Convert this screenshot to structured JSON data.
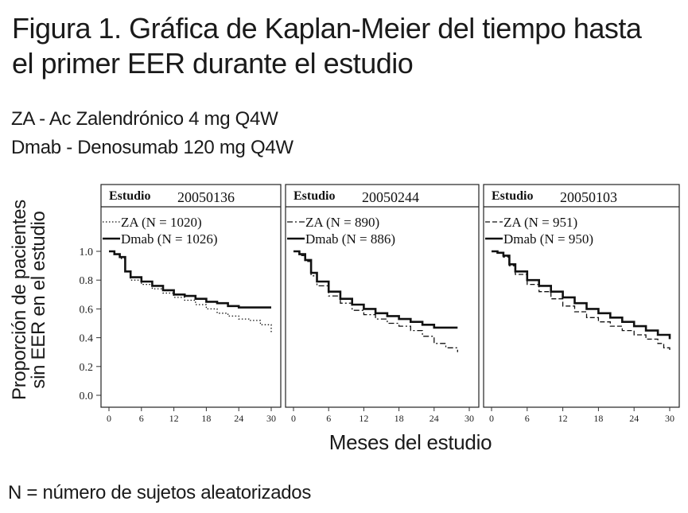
{
  "header": {
    "title_line1": "Figura 1. Gráfica de Kaplan-Meier del tiempo hasta",
    "title_line2": "el primer EER durante el estudio",
    "legend_line1": "ZA - Ac Zalendrónico 4 mg Q4W",
    "legend_line2": "Dmab - Denosumab 120 mg Q4W"
  },
  "footnote": "N = número de sujetos aleatorizados",
  "chart_data": {
    "type": "line",
    "subtype": "kaplan-meier step",
    "ylabel_line1": "Proporción de pacientes",
    "ylabel_line2": "sin EER en el estudio",
    "xlabel": "Meses del estudio",
    "xlim": [
      0,
      30
    ],
    "ylim": [
      0,
      1.0
    ],
    "x_ticks": [
      "0",
      "6",
      "12",
      "18",
      "24",
      "30"
    ],
    "y_ticks": [
      "0.0",
      "0.2",
      "0.4",
      "0.6",
      "0.8",
      "1.0"
    ],
    "grid": false,
    "legend_position": "top-left",
    "panels": [
      {
        "strip_label": "Estudio",
        "strip_number": "20050136",
        "series": [
          {
            "name": "ZA (N = 1020)",
            "style": "dotted",
            "x": [
              0,
              1,
              2,
              3,
              4,
              6,
              8,
              10,
              12,
              14,
              16,
              18,
              20,
              22,
              24,
              26,
              28,
              30
            ],
            "y": [
              1.0,
              0.98,
              0.95,
              0.86,
              0.8,
              0.77,
              0.74,
              0.71,
              0.68,
              0.66,
              0.63,
              0.6,
              0.57,
              0.55,
              0.53,
              0.52,
              0.49,
              0.43
            ]
          },
          {
            "name": "Dmab (N = 1026)",
            "style": "solid",
            "x": [
              0,
              1,
              2,
              3,
              4,
              6,
              8,
              10,
              12,
              14,
              16,
              18,
              20,
              22,
              24,
              26,
              28,
              30
            ],
            "y": [
              1.0,
              0.98,
              0.96,
              0.86,
              0.82,
              0.79,
              0.76,
              0.73,
              0.7,
              0.69,
              0.67,
              0.65,
              0.64,
              0.62,
              0.61,
              0.61,
              0.61,
              0.61
            ]
          }
        ]
      },
      {
        "strip_label": "Estudio",
        "strip_number": "20050244",
        "series": [
          {
            "name": "ZA (N = 890)",
            "style": "dashdot",
            "x": [
              0,
              1,
              2,
              3,
              4,
              6,
              8,
              10,
              12,
              14,
              16,
              18,
              20,
              22,
              24,
              26,
              28
            ],
            "y": [
              1.0,
              0.97,
              0.93,
              0.83,
              0.76,
              0.69,
              0.64,
              0.59,
              0.56,
              0.53,
              0.5,
              0.48,
              0.45,
              0.41,
              0.36,
              0.33,
              0.3
            ]
          },
          {
            "name": "Dmab (N = 886)",
            "style": "solid",
            "x": [
              0,
              1,
              2,
              3,
              4,
              6,
              8,
              10,
              12,
              14,
              16,
              18,
              20,
              22,
              24,
              26,
              28
            ],
            "y": [
              1.0,
              0.98,
              0.94,
              0.85,
              0.79,
              0.72,
              0.67,
              0.63,
              0.6,
              0.57,
              0.55,
              0.53,
              0.51,
              0.49,
              0.47,
              0.47,
              0.47
            ]
          }
        ]
      },
      {
        "strip_label": "Estudio",
        "strip_number": "20050103",
        "series": [
          {
            "name": "ZA (N = 951)",
            "style": "dashed",
            "x": [
              0,
              1,
              2,
              3,
              4,
              6,
              8,
              10,
              12,
              14,
              16,
              18,
              20,
              22,
              24,
              26,
              28,
              29,
              30
            ],
            "y": [
              1.0,
              0.99,
              0.96,
              0.9,
              0.84,
              0.77,
              0.72,
              0.67,
              0.62,
              0.58,
              0.54,
              0.51,
              0.48,
              0.45,
              0.42,
              0.39,
              0.36,
              0.33,
              0.3
            ]
          },
          {
            "name": "Dmab (N = 950)",
            "style": "solid",
            "x": [
              0,
              1,
              2,
              3,
              4,
              6,
              8,
              10,
              12,
              14,
              16,
              18,
              20,
              22,
              24,
              26,
              28,
              30
            ],
            "y": [
              1.0,
              0.99,
              0.97,
              0.91,
              0.86,
              0.8,
              0.76,
              0.72,
              0.68,
              0.64,
              0.6,
              0.57,
              0.54,
              0.51,
              0.48,
              0.45,
              0.42,
              0.39
            ]
          }
        ]
      }
    ]
  }
}
